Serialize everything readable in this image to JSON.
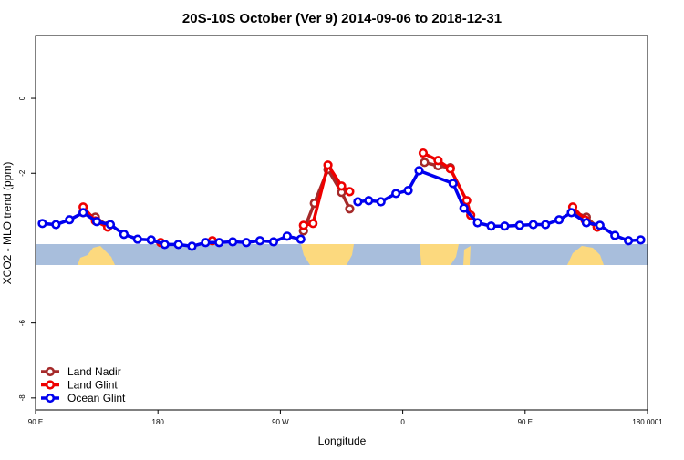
{
  "chart_data": {
    "type": "line",
    "title": "20S-10S October (Ver 9)   2014-09-06 to 2018-12-31",
    "x_label": "Longitude",
    "y_label": "XCO2 - MLO trend (ppm)",
    "xlim": [
      90,
      540
    ],
    "xticks": [
      {
        "value": 90,
        "label": "90 E"
      },
      180,
      {
        "value": 270,
        "label": "90 W"
      },
      {
        "value": 360,
        "label": "0"
      },
      {
        "value": 450,
        "label": "90 E"
      },
      180.0001
    ],
    "ylim": [
      -8.32,
      1.68
    ],
    "yticks": [
      -8,
      -6,
      -2,
      0
    ],
    "legend": "bottom-left",
    "series": [
      {
        "name": "Land Nadir",
        "color": "#a52a2a",
        "x": [
          125,
          134,
          143,
          200,
          287,
          295,
          305,
          315,
          321,
          350,
          376,
          386,
          395,
          450,
          485,
          495,
          503
        ],
        "values": [
          -3.05,
          -3.17,
          -3.4,
          null,
          -3.54,
          -2.8,
          -1.9,
          -2.51,
          -2.95,
          null,
          -1.71,
          -1.8,
          -1.85,
          null,
          -3.02,
          -3.17,
          -3.44
        ]
      },
      {
        "name": "Land Glint",
        "color": "#ee0000",
        "x": [
          125,
          134,
          143,
          162,
          182,
          200,
          220,
          250,
          287,
          294,
          305,
          315,
          321,
          350,
          375,
          386,
          395,
          407,
          410,
          450,
          485,
          494,
          503
        ],
        "values": [
          -2.9,
          -3.27,
          -3.44,
          null,
          -3.85,
          null,
          -3.8,
          null,
          -3.39,
          -3.34,
          -1.78,
          -2.34,
          -2.49,
          null,
          -1.46,
          -1.66,
          -1.88,
          -2.73,
          -3.12,
          null,
          -2.9,
          -3.24,
          -3.44
        ]
      },
      {
        "name": "Ocean Glint",
        "color": "#0000ee",
        "x": [
          95,
          105,
          115,
          125,
          135,
          145,
          155,
          165,
          175,
          185,
          195,
          205,
          215,
          225,
          235,
          245,
          255,
          265,
          275,
          285,
          305,
          327,
          335,
          344,
          355,
          364,
          372,
          397,
          405,
          415,
          425,
          435,
          446,
          456,
          465,
          475,
          484,
          495,
          505,
          516,
          526,
          535
        ],
        "values": [
          -3.34,
          -3.37,
          -3.24,
          -3.05,
          -3.29,
          -3.37,
          -3.63,
          -3.76,
          -3.78,
          -3.9,
          -3.9,
          -3.95,
          -3.85,
          -3.85,
          -3.83,
          -3.85,
          -3.8,
          -3.83,
          -3.68,
          -3.76,
          null,
          -2.76,
          -2.73,
          -2.76,
          -2.54,
          -2.46,
          -1.93,
          -2.27,
          -2.93,
          -3.32,
          -3.41,
          -3.41,
          -3.39,
          -3.37,
          -3.37,
          -3.24,
          -3.05,
          -3.32,
          -3.39,
          -3.66,
          -3.8,
          -3.78
        ]
      }
    ]
  }
}
